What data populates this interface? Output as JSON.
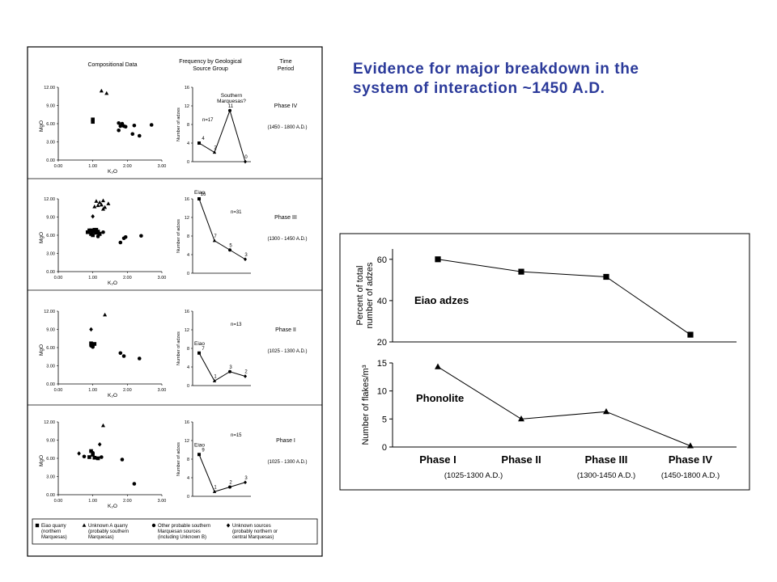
{
  "slide": {
    "title_line1": "Evidence for major breakdown in the",
    "title_line2": "system of interaction ~1450 A.D."
  },
  "figure": {
    "headers": {
      "composition": "Compositional Data",
      "frequency": "Frequency by Geological Source Group",
      "time": "Time Period"
    },
    "scatter_x_label": "K₂O",
    "scatter_y_label": "MgO",
    "freq_y_label": "Number of adzes",
    "legend": [
      {
        "marker": "square",
        "label": "Eiao quarry (northern Marquesas)"
      },
      {
        "marker": "triangle",
        "label": "Unknown A quarry (probably southern Marquesas)"
      },
      {
        "marker": "circle",
        "label": "Other probable southern Marquesan sources (including Unknown B)"
      },
      {
        "marker": "diamond",
        "label": "Unknown sources (probably northern or central Marquesas)"
      }
    ]
  },
  "chart_data": [
    {
      "id": "p4",
      "type": "scatter",
      "phase": "Phase IV",
      "period": "(1450 - 1800 A.D.)",
      "xlim": [
        0,
        3
      ],
      "ylim": [
        0,
        12
      ],
      "x_ticks": [
        "0.00",
        "1.00",
        "2.00",
        "3.00"
      ],
      "y_ticks": [
        "0.00",
        "3.00",
        "6.00",
        "9.00",
        "12.00"
      ],
      "points": [
        {
          "m": "square",
          "x": 1.0,
          "y": 6.7
        },
        {
          "m": "square",
          "x": 1.0,
          "y": 6.3
        },
        {
          "m": "triangle",
          "x": 1.25,
          "y": 11.4
        },
        {
          "m": "triangle",
          "x": 1.4,
          "y": 11.0
        },
        {
          "m": "circle",
          "x": 1.75,
          "y": 6.1
        },
        {
          "m": "circle",
          "x": 1.85,
          "y": 6.0
        },
        {
          "m": "circle",
          "x": 1.9,
          "y": 5.6
        },
        {
          "m": "circle",
          "x": 1.8,
          "y": 5.6
        },
        {
          "m": "circle",
          "x": 1.95,
          "y": 5.5
        },
        {
          "m": "circle",
          "x": 2.2,
          "y": 5.7
        },
        {
          "m": "circle",
          "x": 1.75,
          "y": 4.9
        },
        {
          "m": "circle",
          "x": 2.15,
          "y": 4.3
        },
        {
          "m": "circle",
          "x": 2.35,
          "y": 4.0
        },
        {
          "m": "circle",
          "x": 2.7,
          "y": 5.8
        }
      ],
      "freq": {
        "n": "n=17",
        "ymax": 16,
        "y_ticks": [
          "0",
          "4",
          "8",
          "12",
          "16"
        ],
        "values": [
          4,
          2,
          11,
          0
        ],
        "labels": [
          "4",
          "2",
          "11",
          "0"
        ],
        "annotation": "Southern Marquesas?",
        "ann_idx": 2
      },
      "freq_first_marker": "square"
    },
    {
      "id": "p3",
      "type": "scatter",
      "phase": "Phase III",
      "period": "(1300 - 1450 A.D.)",
      "xlim": [
        0,
        3
      ],
      "ylim": [
        0,
        12
      ],
      "x_ticks": [
        "0.00",
        "1.00",
        "2.00",
        "3.00"
      ],
      "y_ticks": [
        "0.00",
        "3.00",
        "6.00",
        "9.00",
        "12.00"
      ],
      "points": [
        {
          "m": "square",
          "x": 0.9,
          "y": 6.8
        },
        {
          "m": "square",
          "x": 1.0,
          "y": 6.6
        },
        {
          "m": "square",
          "x": 1.05,
          "y": 6.9
        },
        {
          "m": "square",
          "x": 0.95,
          "y": 6.2
        },
        {
          "m": "square",
          "x": 1.1,
          "y": 6.4
        },
        {
          "m": "square",
          "x": 1.15,
          "y": 6.6
        },
        {
          "m": "square",
          "x": 0.85,
          "y": 6.5
        },
        {
          "m": "square",
          "x": 1.0,
          "y": 6.0
        },
        {
          "m": "square",
          "x": 1.2,
          "y": 6.2
        },
        {
          "m": "square",
          "x": 0.95,
          "y": 6.8
        },
        {
          "m": "square",
          "x": 1.1,
          "y": 6.9
        },
        {
          "m": "triangle",
          "x": 1.1,
          "y": 11.6
        },
        {
          "m": "triangle",
          "x": 1.2,
          "y": 11.4
        },
        {
          "m": "triangle",
          "x": 1.3,
          "y": 11.7
        },
        {
          "m": "triangle",
          "x": 1.15,
          "y": 10.9
        },
        {
          "m": "triangle",
          "x": 1.25,
          "y": 11.0
        },
        {
          "m": "triangle",
          "x": 1.35,
          "y": 10.6
        },
        {
          "m": "triangle",
          "x": 1.45,
          "y": 11.2
        },
        {
          "m": "triangle",
          "x": 1.3,
          "y": 10.3
        },
        {
          "m": "triangle",
          "x": 1.05,
          "y": 10.7
        },
        {
          "m": "diamond",
          "x": 1.0,
          "y": 9.1
        },
        {
          "m": "circle",
          "x": 1.2,
          "y": 6.3
        },
        {
          "m": "circle",
          "x": 1.3,
          "y": 6.5
        },
        {
          "m": "circle",
          "x": 1.15,
          "y": 5.8
        },
        {
          "m": "circle",
          "x": 1.9,
          "y": 5.5
        },
        {
          "m": "circle",
          "x": 1.95,
          "y": 5.7
        },
        {
          "m": "circle",
          "x": 1.8,
          "y": 4.8
        },
        {
          "m": "circle",
          "x": 2.4,
          "y": 5.9
        }
      ],
      "freq": {
        "n": "n=31",
        "ymax": 16,
        "y_ticks": [
          "0",
          "4",
          "8",
          "12",
          "16"
        ],
        "values": [
          16,
          7,
          5,
          3
        ],
        "labels": [
          "16",
          "7",
          "5",
          "3"
        ],
        "annotation": "Eiao",
        "ann_idx": 0
      },
      "freq_first_marker": "square"
    },
    {
      "id": "p2",
      "type": "scatter",
      "phase": "Phase II",
      "period": "(1025 - 1300 A.D.)",
      "xlim": [
        0,
        3
      ],
      "ylim": [
        0,
        12
      ],
      "x_ticks": [
        "0.00",
        "1.00",
        "2.00",
        "3.00"
      ],
      "y_ticks": [
        "0.00",
        "3.00",
        "6.00",
        "9.00",
        "12.00"
      ],
      "points": [
        {
          "m": "triangle",
          "x": 1.35,
          "y": 11.4
        },
        {
          "m": "diamond",
          "x": 0.95,
          "y": 9.0
        },
        {
          "m": "square",
          "x": 0.95,
          "y": 6.7
        },
        {
          "m": "square",
          "x": 1.0,
          "y": 6.5
        },
        {
          "m": "square",
          "x": 1.05,
          "y": 6.6
        },
        {
          "m": "circle",
          "x": 0.95,
          "y": 6.3
        },
        {
          "m": "circle",
          "x": 1.0,
          "y": 6.1
        },
        {
          "m": "circle",
          "x": 1.8,
          "y": 5.1
        },
        {
          "m": "circle",
          "x": 1.9,
          "y": 4.6
        },
        {
          "m": "circle",
          "x": 2.35,
          "y": 4.2
        }
      ],
      "freq": {
        "n": "n=13",
        "ymax": 16,
        "y_ticks": [
          "0",
          "4",
          "8",
          "12",
          "16"
        ],
        "values": [
          7,
          1,
          3,
          2
        ],
        "labels": [
          "7",
          "1",
          "3",
          "2"
        ],
        "annotation": "Eiao",
        "ann_idx": 0
      },
      "freq_first_marker": "square"
    },
    {
      "id": "p1",
      "type": "scatter",
      "phase": "Phase I",
      "period": "(1025 - 1300 A.D.)",
      "xlim": [
        0,
        3
      ],
      "ylim": [
        0,
        12
      ],
      "x_ticks": [
        "0.00",
        "1.00",
        "2.00",
        "3.00"
      ],
      "y_ticks": [
        "0.00",
        "3.00",
        "6.00",
        "9.00",
        "12.00"
      ],
      "points": [
        {
          "m": "triangle",
          "x": 1.3,
          "y": 11.4
        },
        {
          "m": "diamond",
          "x": 1.2,
          "y": 8.3
        },
        {
          "m": "diamond",
          "x": 0.6,
          "y": 6.8
        },
        {
          "m": "square",
          "x": 0.95,
          "y": 7.2
        },
        {
          "m": "square",
          "x": 1.0,
          "y": 6.6
        },
        {
          "m": "square",
          "x": 0.9,
          "y": 6.2
        },
        {
          "m": "square",
          "x": 1.05,
          "y": 6.1
        },
        {
          "m": "square",
          "x": 1.15,
          "y": 6.0
        },
        {
          "m": "circle",
          "x": 0.75,
          "y": 6.3
        },
        {
          "m": "circle",
          "x": 1.25,
          "y": 6.2
        },
        {
          "m": "circle",
          "x": 1.0,
          "y": 6.9
        },
        {
          "m": "circle",
          "x": 1.85,
          "y": 5.8
        },
        {
          "m": "circle",
          "x": 2.2,
          "y": 1.8
        }
      ],
      "freq": {
        "n": "n=15",
        "ymax": 16,
        "y_ticks": [
          "0",
          "4",
          "8",
          "12",
          "16"
        ],
        "values": [
          9,
          1,
          2,
          3
        ],
        "labels": [
          "9",
          "1",
          "2",
          "3"
        ],
        "annotation": "Eiao",
        "ann_idx": 0
      },
      "freq_first_marker": "square"
    },
    {
      "id": "eiao",
      "type": "line",
      "series_label": "Eiao adzes",
      "ylabel": [
        "Percent of total",
        "number of adzes"
      ],
      "ylim": [
        20,
        65
      ],
      "y_ticks": [
        20,
        40,
        60
      ],
      "values": [
        60,
        54,
        51.5,
        23.5
      ],
      "marker": "square"
    },
    {
      "id": "phon",
      "type": "line",
      "series_label": "Phonolite",
      "ylabel": [
        "Number of flakes/m³"
      ],
      "ylim": [
        0,
        15
      ],
      "y_ticks": [
        0,
        5,
        10,
        15
      ],
      "values": [
        14.3,
        5,
        6.3,
        0.2
      ],
      "marker": "triangle",
      "categories": [
        "Phase I",
        "Phase II",
        "Phase III",
        "Phase IV"
      ],
      "periods": [
        "(1025-1300 A.D.)",
        "",
        "(1300-1450 A.D.)",
        "(1450-1800 A.D.)"
      ]
    }
  ]
}
